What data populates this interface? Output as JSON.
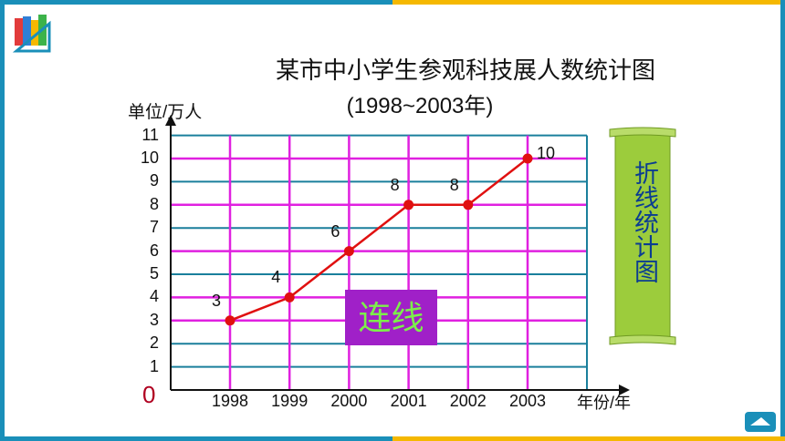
{
  "chart_data": {
    "type": "line",
    "title": "某市中小学生参观科技展人数统计图",
    "subtitle": "(1998~2003年)",
    "ylabel": "单位/万人",
    "xlabel": "年份/年",
    "origin_label": "0",
    "categories": [
      "1998",
      "1999",
      "2000",
      "2001",
      "2002",
      "2003"
    ],
    "y_ticks": [
      "1",
      "2",
      "3",
      "4",
      "5",
      "6",
      "7",
      "8",
      "9",
      "10",
      "11"
    ],
    "ylim": [
      0,
      11
    ],
    "grid": true,
    "series": [
      {
        "values": [
          3,
          4,
          6,
          8,
          8,
          10
        ],
        "labels": [
          "3",
          "4",
          "6",
          "8",
          "8",
          "10"
        ]
      }
    ],
    "colors": {
      "grid": "#1a7f9c",
      "guide": "#e020e0",
      "line": "#e01010",
      "point": "#e01010",
      "axis": "#111111"
    }
  },
  "annotation": {
    "text": "连线",
    "bg": "#a020c8",
    "color": "#7cf04a"
  },
  "scroll": {
    "text": "折线统计图",
    "bg": "#9ccc3c"
  },
  "frame": {
    "primary": "#1a8fb9",
    "accent": "#f5b800"
  },
  "icons": {
    "logo": "books-logo-icon",
    "nav": "slide-nav-icon"
  }
}
